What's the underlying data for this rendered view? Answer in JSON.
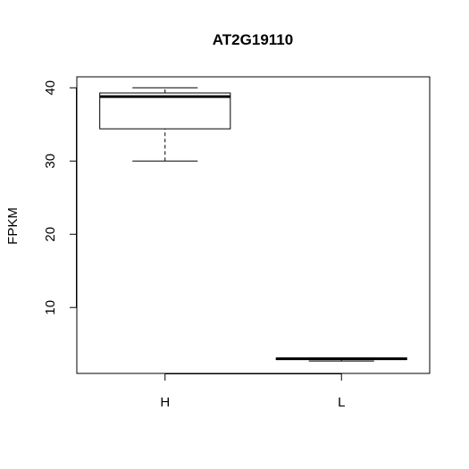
{
  "chart_data": {
    "type": "boxplot",
    "title": "AT2G19110",
    "xlabel": "",
    "ylabel": "FPKM",
    "categories": [
      "H",
      "L"
    ],
    "yticks": [
      10,
      20,
      30,
      40
    ],
    "ylim": [
      1,
      41.5
    ],
    "grid": false,
    "boxes": [
      {
        "category": "H",
        "min": 30.0,
        "q1": 34.4,
        "median": 38.8,
        "q3": 39.3,
        "max": 40.0
      },
      {
        "category": "L",
        "min": 2.7,
        "q1": 2.9,
        "median": 3.0,
        "q3": 3.1,
        "max": 3.1
      }
    ]
  }
}
